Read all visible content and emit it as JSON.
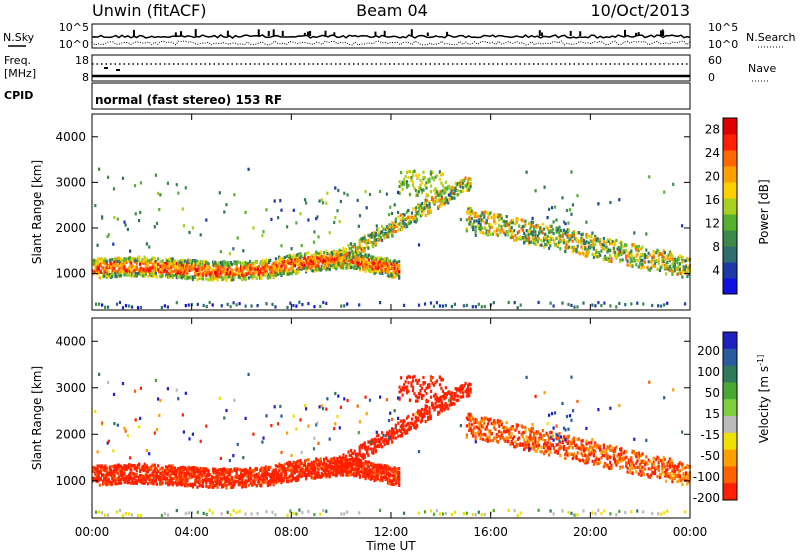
{
  "header": {
    "station": "Unwin (fitACF)",
    "beam": "Beam 04",
    "date": "10/Oct/2013"
  },
  "panels": {
    "nsky_label": "N.Sky",
    "nsearch_label": "N.Search",
    "freq_label_1": "Freq.",
    "freq_label_2": "[MHz]",
    "nave_label": "Nave",
    "cpid_label": "CPID",
    "cpid_text": "normal (fast stereo) 153 RF",
    "noise_ticks": [
      "10^5",
      "10^0"
    ],
    "freq_ticks": [
      "18",
      "8"
    ],
    "nave_ticks": [
      "60",
      "0"
    ]
  },
  "chart_data": [
    {
      "type": "heatmap",
      "title": "",
      "xlabel": "",
      "ylabel": "Slant Range [km]",
      "x_ticks": [
        "00:00",
        "04:00",
        "08:00",
        "12:00",
        "16:00",
        "20:00",
        "00:00"
      ],
      "y_ticks": [
        1000,
        2000,
        3000,
        4000
      ],
      "ylim": [
        200,
        4500
      ],
      "xlim_hours": [
        0,
        24
      ],
      "colorbar": {
        "label": "Power [dB]",
        "ticks": [
          4,
          8,
          12,
          16,
          20,
          24,
          28
        ],
        "colors": [
          "#1010e0",
          "#1e3aa8",
          "#2e6e6e",
          "#3b8a4a",
          "#58b030",
          "#a8d020",
          "#ffd000",
          "#ffa000",
          "#ff6800",
          "#ff2000",
          "#e00000"
        ]
      },
      "features": [
        {
          "name": "main band",
          "hours": [
            0,
            12
          ],
          "range_km": [
            900,
            1300
          ],
          "dominant_power_db": 24
        },
        {
          "name": "rising arc",
          "hours": [
            10,
            15
          ],
          "range_km": [
            1200,
            3000
          ],
          "dominant_power_db": 14
        },
        {
          "name": "falling arc",
          "hours": [
            15,
            24
          ],
          "range_km": [
            1000,
            2200
          ],
          "dominant_power_db": 16
        },
        {
          "name": "near range scatter",
          "hours": [
            0,
            24
          ],
          "range_km": [
            250,
            350
          ],
          "dominant_power_db": 8
        }
      ]
    },
    {
      "type": "heatmap",
      "title": "",
      "xlabel": "Time UT",
      "ylabel": "Slant Range [km]",
      "x_ticks": [
        "00:00",
        "04:00",
        "08:00",
        "12:00",
        "16:00",
        "20:00",
        "00:00"
      ],
      "y_ticks": [
        1000,
        2000,
        3000,
        4000
      ],
      "ylim": [
        200,
        4500
      ],
      "xlim_hours": [
        0,
        24
      ],
      "colorbar": {
        "label": "Velocity [m s^-1]",
        "ticks": [
          200,
          100,
          50,
          15,
          -15,
          -50,
          -100,
          -200
        ],
        "colors": [
          "#2020c0",
          "#2a5aa0",
          "#2e7a5a",
          "#4aa832",
          "#7ed040",
          "#bbbbbb",
          "#f0e000",
          "#ffa000",
          "#ff6000",
          "#ff2000"
        ]
      },
      "features": [
        {
          "name": "main band",
          "hours": [
            0,
            12
          ],
          "range_km": [
            900,
            1300
          ],
          "dominant_velocity": -200
        },
        {
          "name": "rising arc",
          "hours": [
            10,
            15
          ],
          "range_km": [
            1200,
            3000
          ],
          "dominant_velocity": -200
        },
        {
          "name": "falling arc",
          "hours": [
            15,
            24
          ],
          "range_km": [
            1000,
            2200
          ],
          "dominant_velocity": -150
        },
        {
          "name": "near range scatter",
          "hours": [
            0,
            24
          ],
          "range_km": [
            250,
            350
          ],
          "dominant_velocity": -50
        }
      ]
    }
  ]
}
